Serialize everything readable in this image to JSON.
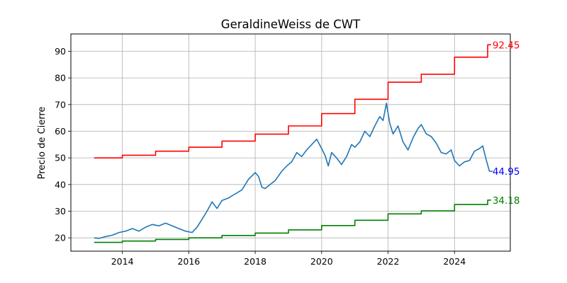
{
  "chart_data": {
    "type": "line",
    "title": "GeraldineWeiss de CWT",
    "xlabel": "",
    "ylabel": "Precio de Cierre",
    "xlim": [
      2012.45,
      2025.68
    ],
    "ylim": [
      15,
      96.5
    ],
    "x_ticks": [
      2014,
      2016,
      2018,
      2020,
      2022,
      2024
    ],
    "x_tick_labels": [
      "2014",
      "2016",
      "2018",
      "2020",
      "2022",
      "2024"
    ],
    "y_ticks": [
      20,
      30,
      40,
      50,
      60,
      70,
      80,
      90
    ],
    "y_tick_labels": [
      "20",
      "30",
      "40",
      "50",
      "60",
      "70",
      "80",
      "90"
    ],
    "grid": true,
    "series": [
      {
        "color": "#1f77b4",
        "x": [
          2013.15,
          2013.3,
          2013.5,
          2013.7,
          2013.9,
          2014.1,
          2014.3,
          2014.5,
          2014.7,
          2014.9,
          2015.1,
          2015.3,
          2015.5,
          2015.7,
          2015.9,
          2016.1,
          2016.25,
          2016.4,
          2016.55,
          2016.7,
          2016.85,
          2017.0,
          2017.2,
          2017.4,
          2017.6,
          2017.8,
          2018.0,
          2018.1,
          2018.2,
          2018.3,
          2018.45,
          2018.6,
          2018.8,
          2018.95,
          2019.1,
          2019.25,
          2019.4,
          2019.55,
          2019.7,
          2019.85,
          2020.0,
          2020.1,
          2020.2,
          2020.3,
          2020.45,
          2020.6,
          2020.75,
          2020.9,
          2021.0,
          2021.15,
          2021.3,
          2021.45,
          2021.6,
          2021.75,
          2021.85,
          2021.95,
          2022.05,
          2022.15,
          2022.3,
          2022.45,
          2022.6,
          2022.75,
          2022.9,
          2023.0,
          2023.15,
          2023.3,
          2023.45,
          2023.6,
          2023.75,
          2023.9,
          2024.0,
          2024.15,
          2024.3,
          2024.45,
          2024.6,
          2024.75,
          2024.85,
          2024.95,
          2025.05,
          2025.15
        ],
        "y": [
          20.0,
          19.8,
          20.5,
          21.0,
          22.0,
          22.5,
          23.5,
          22.5,
          24.0,
          25.0,
          24.5,
          25.5,
          24.5,
          23.5,
          22.5,
          22.0,
          24.0,
          27.0,
          30.0,
          33.5,
          31.0,
          34.0,
          35.0,
          36.5,
          38.0,
          42.0,
          44.5,
          43.0,
          39.0,
          38.5,
          40.0,
          41.5,
          45.0,
          47.0,
          48.5,
          52.0,
          50.5,
          53.0,
          55.0,
          57.0,
          53.5,
          51.0,
          47.0,
          52.0,
          50.0,
          47.5,
          50.5,
          55.0,
          54.0,
          56.0,
          60.0,
          58.0,
          62.0,
          65.5,
          64.0,
          70.5,
          63.0,
          59.0,
          62.0,
          56.0,
          53.0,
          57.5,
          61.0,
          62.5,
          59.0,
          58.0,
          55.5,
          52.0,
          51.5,
          53.0,
          49.0,
          47.0,
          48.5,
          49.0,
          52.5,
          53.5,
          54.5,
          49.5,
          45.0,
          44.95
        ]
      },
      {
        "color": "#ff0000",
        "x": [
          2013.15,
          2014.0,
          2014.0,
          2015.0,
          2015.0,
          2016.0,
          2016.0,
          2017.0,
          2017.0,
          2018.0,
          2018.0,
          2019.0,
          2019.0,
          2020.0,
          2020.0,
          2021.0,
          2021.0,
          2022.0,
          2022.0,
          2023.0,
          2023.0,
          2024.0,
          2024.0,
          2025.0,
          2025.0,
          2025.1
        ],
        "y": [
          50.0,
          50.0,
          51.0,
          51.0,
          52.5,
          52.5,
          54.0,
          54.0,
          56.3,
          56.3,
          58.9,
          58.9,
          62.0,
          62.0,
          66.6,
          66.6,
          72.0,
          72.0,
          78.4,
          78.4,
          81.4,
          81.4,
          87.8,
          87.8,
          92.45,
          92.45
        ]
      },
      {
        "color": "#008000",
        "x": [
          2013.15,
          2014.0,
          2014.0,
          2015.0,
          2015.0,
          2016.0,
          2016.0,
          2017.0,
          2017.0,
          2018.0,
          2018.0,
          2019.0,
          2019.0,
          2020.0,
          2020.0,
          2021.0,
          2021.0,
          2022.0,
          2022.0,
          2023.0,
          2023.0,
          2024.0,
          2024.0,
          2025.0,
          2025.0,
          2025.1
        ],
        "y": [
          18.3,
          18.3,
          18.8,
          18.8,
          19.4,
          19.4,
          20.0,
          20.0,
          20.9,
          20.9,
          21.8,
          21.8,
          23.0,
          23.0,
          24.6,
          24.6,
          26.6,
          26.6,
          29.0,
          29.0,
          30.1,
          30.1,
          32.5,
          32.5,
          34.18,
          34.18
        ]
      }
    ],
    "end_labels": [
      {
        "text": "92.45",
        "x": 2025.1,
        "y": 92.45,
        "color": "#ff0000"
      },
      {
        "text": "44.95",
        "x": 2025.1,
        "y": 44.95,
        "color": "#0000ff"
      },
      {
        "text": "34.18",
        "x": 2025.1,
        "y": 34.18,
        "color": "#008000"
      }
    ]
  }
}
